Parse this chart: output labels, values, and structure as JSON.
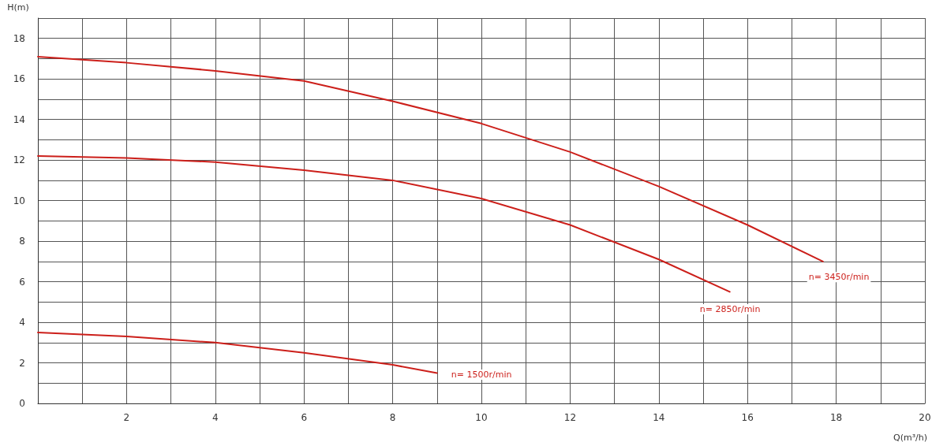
{
  "chart_data": {
    "type": "line",
    "xlabel": "Q(m³/h)",
    "ylabel": "H(m)",
    "xlim": [
      0,
      20
    ],
    "ylim": [
      0,
      19
    ],
    "xticks": [
      {
        "value": 0,
        "label": null
      },
      {
        "value": 1,
        "label": null
      },
      2,
      {
        "value": 3,
        "label": null
      },
      4,
      {
        "value": 5,
        "label": null
      },
      6,
      {
        "value": 7,
        "label": null
      },
      8,
      {
        "value": 9,
        "label": null
      },
      10,
      {
        "value": 11,
        "label": null
      },
      12,
      {
        "value": 13,
        "label": null
      },
      14,
      {
        "value": 15,
        "label": null
      },
      16,
      {
        "value": 17,
        "label": null
      },
      18,
      {
        "value": 19,
        "label": null
      },
      20
    ],
    "yticks": [
      0,
      {
        "value": 1,
        "label": null
      },
      2,
      {
        "value": 3,
        "label": null
      },
      4,
      {
        "value": 5,
        "label": null
      },
      6,
      {
        "value": 7,
        "label": null
      },
      8,
      {
        "value": 9,
        "label": null
      },
      10,
      {
        "value": 11,
        "label": null
      },
      12,
      {
        "value": 13,
        "label": null
      },
      14,
      {
        "value": 15,
        "label": null
      },
      16,
      {
        "value": 17,
        "label": null
      },
      18,
      {
        "value": 19,
        "label": null
      }
    ],
    "grid": true,
    "marker": "none",
    "line_style": "solid",
    "series": [
      {
        "name": "n= 3450r/min",
        "color": "#cc1f1a",
        "x": [
          0,
          2,
          4,
          6,
          8,
          10,
          12,
          14,
          16,
          17.7
        ],
        "values": [
          17.1,
          16.8,
          16.4,
          15.9,
          14.9,
          13.8,
          12.4,
          10.7,
          8.8,
          7.0
        ]
      },
      {
        "name": "n= 2850r/min",
        "color": "#cc1f1a",
        "x": [
          0,
          2,
          4,
          6,
          8,
          10,
          12,
          14,
          15.6
        ],
        "values": [
          12.2,
          12.1,
          11.9,
          11.5,
          11.0,
          10.1,
          8.8,
          7.1,
          5.5
        ]
      },
      {
        "name": "n= 1500r/min",
        "color": "#cc1f1a",
        "x": [
          0,
          2,
          4,
          6,
          8,
          9
        ],
        "values": [
          3.5,
          3.3,
          3.0,
          2.5,
          1.9,
          1.5
        ]
      }
    ]
  }
}
